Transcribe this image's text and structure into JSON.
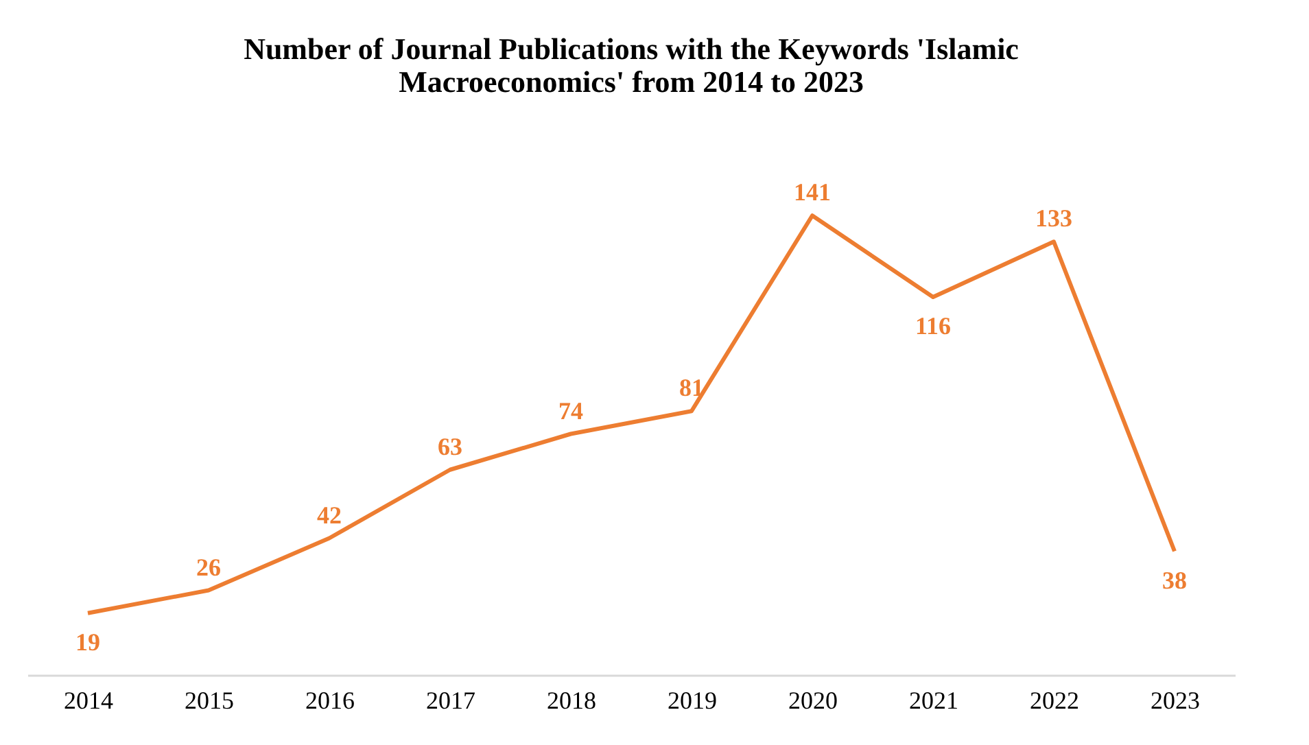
{
  "chart_data": {
    "type": "line",
    "title": "Number of Journal Publications with the Keywords 'Islamic Macroeconomics' from 2014 to 2023",
    "categories": [
      "2014",
      "2015",
      "2016",
      "2017",
      "2018",
      "2019",
      "2020",
      "2021",
      "2022",
      "2023"
    ],
    "series": [
      {
        "color": "#ed7d31",
        "values": [
          19,
          26,
          42,
          63,
          74,
          81,
          141,
          116,
          133,
          38
        ]
      }
    ],
    "data_labels": true,
    "grid": false,
    "marker": "none",
    "line_style": "solid",
    "tick_labels": "x"
  }
}
